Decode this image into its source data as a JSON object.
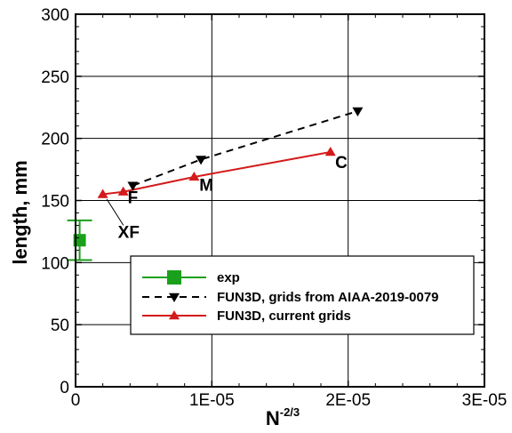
{
  "chart_data": {
    "type": "scatter",
    "title": "",
    "xlabel": "N",
    "xlabel_sup": "-2/3",
    "ylabel": "length, mm",
    "xlim": [
      0,
      3e-05
    ],
    "ylim": [
      0,
      300
    ],
    "x_ticks": [
      0,
      1e-05,
      2e-05,
      3e-05
    ],
    "x_tick_labels": [
      "0",
      "1E-05",
      "2E-05",
      "3E-05"
    ],
    "y_ticks": [
      0,
      50,
      100,
      150,
      200,
      250,
      300
    ],
    "y_tick_labels": [
      "0",
      "50",
      "100",
      "150",
      "200",
      "250",
      "300"
    ],
    "grid": true,
    "legend_position": "lower-right",
    "series": [
      {
        "name": "exp",
        "color": "#1aa01a",
        "marker": "square",
        "line": "solid",
        "points": [
          {
            "x": 3e-07,
            "y": 118,
            "y_err_low": 102,
            "y_err_high": 134
          }
        ]
      },
      {
        "name": "FUN3D, grids from AIAA-2019-0079",
        "color": "#000000",
        "marker": "triangle-down",
        "line": "dashed",
        "points": [
          {
            "x": 4.2e-06,
            "y": 162
          },
          {
            "x": 9.2e-06,
            "y": 183
          },
          {
            "x": 2.07e-05,
            "y": 222
          }
        ]
      },
      {
        "name": "FUN3D, current grids",
        "color": "#d41a1a",
        "marker": "triangle-up",
        "line": "solid",
        "points": [
          {
            "x": 2e-06,
            "y": 155
          },
          {
            "x": 3.5e-06,
            "y": 157
          },
          {
            "x": 8.7e-06,
            "y": 169
          },
          {
            "x": 1.87e-05,
            "y": 189
          }
        ]
      }
    ],
    "annotations": [
      {
        "text": "XF",
        "x": 3.9e-06,
        "y": 120,
        "leader_to": {
          "x": 2.3e-06,
          "y": 151
        }
      },
      {
        "text": "F",
        "x": 4.2e-06,
        "y": 148
      },
      {
        "text": "M",
        "x": 9.6e-06,
        "y": 158
      },
      {
        "text": "C",
        "x": 1.95e-05,
        "y": 176
      }
    ]
  }
}
